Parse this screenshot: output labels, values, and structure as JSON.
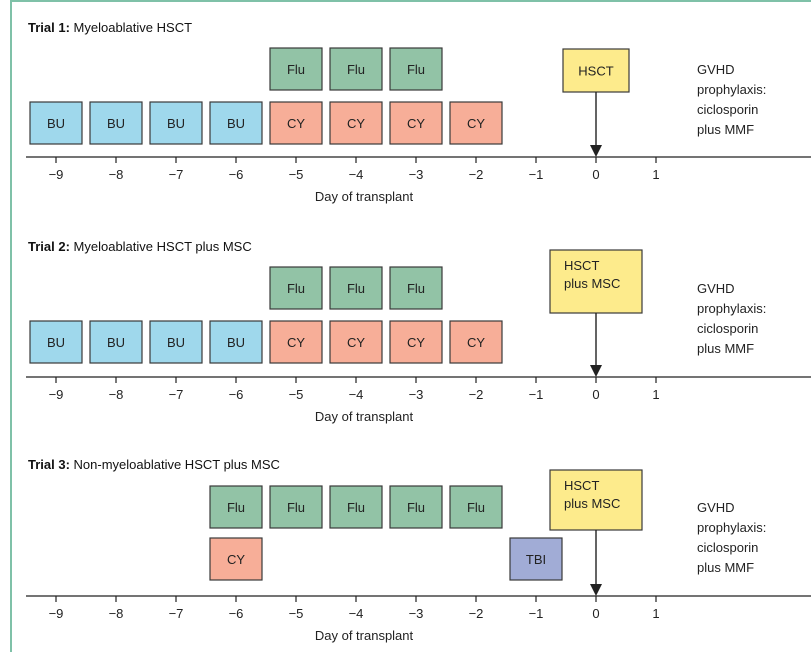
{
  "colors": {
    "bu": "#9fd8ec",
    "flu": "#92c3a6",
    "cy": "#f7ae98",
    "hsct": "#fdeb8c",
    "tbi": "#a1acd6",
    "box_border": "#3a3a3a",
    "axis": "#222222"
  },
  "trials": [
    {
      "title_bold": "Trial 1:",
      "title_rest": " Myeloablative HSCT",
      "transplant_label": [
        "HSCT"
      ],
      "prophylaxis": [
        "GVHD",
        "prophylaxis:",
        "ciclosporin",
        "plus MMF"
      ],
      "axis_label": "Day of transplant",
      "ticks": [
        "−9",
        "−8",
        "−7",
        "−6",
        "−5",
        "−4",
        "−3",
        "−2",
        "−1",
        "0",
        "1"
      ],
      "top_row": [
        {
          "label": "Flu",
          "day": -5,
          "color": "flu"
        },
        {
          "label": "Flu",
          "day": -4,
          "color": "flu"
        },
        {
          "label": "Flu",
          "day": -3,
          "color": "flu"
        }
      ],
      "bottom_row": [
        {
          "label": "BU",
          "day": -9,
          "color": "bu"
        },
        {
          "label": "BU",
          "day": -8,
          "color": "bu"
        },
        {
          "label": "BU",
          "day": -7,
          "color": "bu"
        },
        {
          "label": "BU",
          "day": -6,
          "color": "bu"
        },
        {
          "label": "CY",
          "day": -5,
          "color": "cy"
        },
        {
          "label": "CY",
          "day": -4,
          "color": "cy"
        },
        {
          "label": "CY",
          "day": -3,
          "color": "cy"
        },
        {
          "label": "CY",
          "day": -2,
          "color": "cy"
        }
      ]
    },
    {
      "title_bold": "Trial 2:",
      "title_rest": " Myeloablative HSCT plus MSC",
      "transplant_label": [
        "HSCT",
        "plus MSC"
      ],
      "prophylaxis": [
        "GVHD",
        "prophylaxis:",
        "ciclosporin",
        "plus MMF"
      ],
      "axis_label": "Day of transplant",
      "ticks": [
        "−9",
        "−8",
        "−7",
        "−6",
        "−5",
        "−4",
        "−3",
        "−2",
        "−1",
        "0",
        "1"
      ],
      "top_row": [
        {
          "label": "Flu",
          "day": -5,
          "color": "flu"
        },
        {
          "label": "Flu",
          "day": -4,
          "color": "flu"
        },
        {
          "label": "Flu",
          "day": -3,
          "color": "flu"
        }
      ],
      "bottom_row": [
        {
          "label": "BU",
          "day": -9,
          "color": "bu"
        },
        {
          "label": "BU",
          "day": -8,
          "color": "bu"
        },
        {
          "label": "BU",
          "day": -7,
          "color": "bu"
        },
        {
          "label": "BU",
          "day": -6,
          "color": "bu"
        },
        {
          "label": "CY",
          "day": -5,
          "color": "cy"
        },
        {
          "label": "CY",
          "day": -4,
          "color": "cy"
        },
        {
          "label": "CY",
          "day": -3,
          "color": "cy"
        },
        {
          "label": "CY",
          "day": -2,
          "color": "cy"
        }
      ]
    },
    {
      "title_bold": "Trial 3:",
      "title_rest": " Non-myeloablative HSCT plus MSC",
      "transplant_label": [
        "HSCT",
        "plus MSC"
      ],
      "prophylaxis": [
        "GVHD",
        "prophylaxis:",
        "ciclosporin",
        "plus MMF"
      ],
      "axis_label": "Day of transplant",
      "ticks": [
        "−9",
        "−8",
        "−7",
        "−6",
        "−5",
        "−4",
        "−3",
        "−2",
        "−1",
        "0",
        "1"
      ],
      "top_row": [
        {
          "label": "Flu",
          "day": -6,
          "color": "flu"
        },
        {
          "label": "Flu",
          "day": -5,
          "color": "flu"
        },
        {
          "label": "Flu",
          "day": -4,
          "color": "flu"
        },
        {
          "label": "Flu",
          "day": -3,
          "color": "flu"
        },
        {
          "label": "Flu",
          "day": -2,
          "color": "flu"
        }
      ],
      "bottom_row": [
        {
          "label": "CY",
          "day": -6,
          "color": "cy"
        },
        {
          "label": "TBI",
          "day": -1,
          "color": "tbi"
        }
      ]
    }
  ]
}
